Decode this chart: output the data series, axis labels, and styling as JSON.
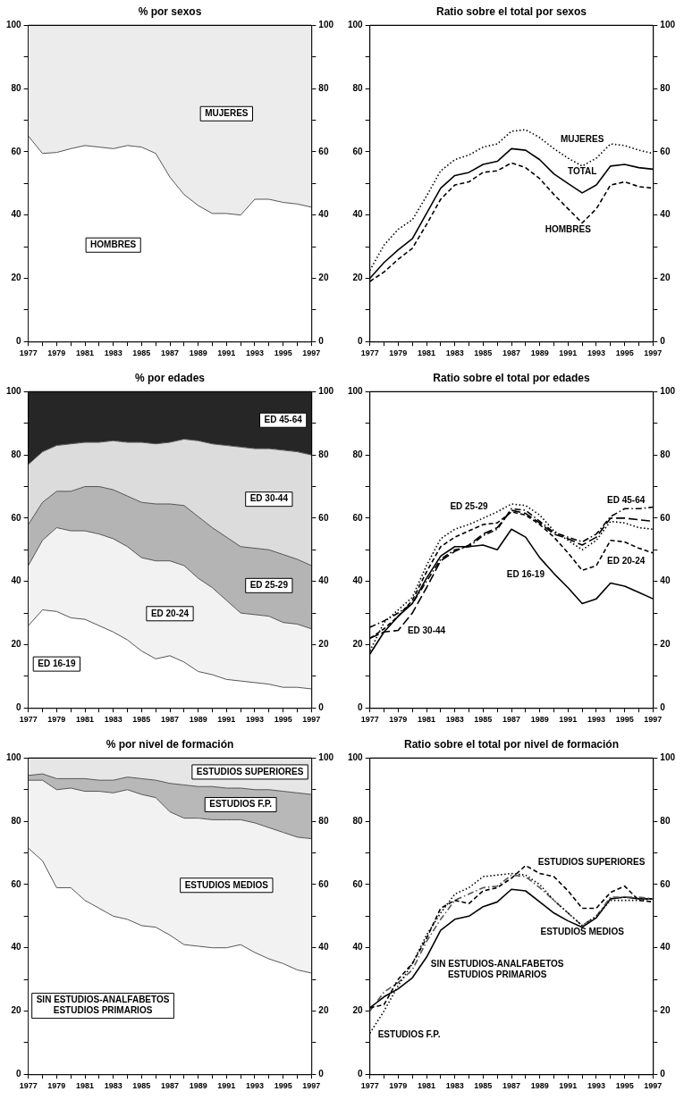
{
  "chart_data": [
    {
      "type": "area",
      "stacked": true,
      "title": "% por sexos",
      "x": [
        1977,
        1978,
        1979,
        1980,
        1981,
        1982,
        1983,
        1984,
        1985,
        1986,
        1987,
        1988,
        1989,
        1990,
        1991,
        1992,
        1993,
        1994,
        1995,
        1996,
        1997
      ],
      "xlim": [
        1977,
        1997
      ],
      "xticks": [
        1977,
        {
          "value": 1978,
          "label": null
        },
        1979,
        {
          "value": 1980,
          "label": null
        },
        1981,
        {
          "value": 1982,
          "label": null
        },
        1983,
        {
          "value": 1984,
          "label": null
        },
        1985,
        {
          "value": 1986,
          "label": null
        },
        1987,
        {
          "value": 1988,
          "label": null
        },
        1989,
        {
          "value": 1990,
          "label": null
        },
        1991,
        {
          "value": 1992,
          "label": null
        },
        1993,
        {
          "value": 1994,
          "label": null
        },
        1995,
        {
          "value": 1996,
          "label": null
        },
        1997
      ],
      "ylim": [
        0,
        100
      ],
      "yticks": [
        0,
        {
          "value": 10,
          "label": null
        },
        20,
        {
          "value": 30,
          "label": null
        },
        40,
        {
          "value": 50,
          "label": null
        },
        60,
        {
          "value": 70,
          "label": null
        },
        80,
        {
          "value": 90,
          "label": null
        },
        100
      ],
      "y2lim": [
        0,
        100
      ],
      "y2ticks": [
        0,
        {
          "value": 10,
          "label": null
        },
        20,
        {
          "value": 30,
          "label": null
        },
        40,
        {
          "value": 50,
          "label": null
        },
        60,
        {
          "value": 70,
          "label": null
        },
        80,
        {
          "value": 90,
          "label": null
        },
        100
      ],
      "series": [
        {
          "name": "HOMBRES",
          "color": "#ffffff",
          "values": [
            65,
            59.5,
            59.8,
            61,
            62,
            61.5,
            61,
            62,
            61.5,
            59.5,
            52,
            46.5,
            43,
            40.5,
            40.5,
            40,
            45,
            45,
            44,
            43.5,
            42.5
          ]
        },
        {
          "name": "MUJERES",
          "color": "#ececec",
          "values": [
            35,
            40.5,
            40.2,
            39,
            38,
            38.5,
            39,
            38,
            38.5,
            40.5,
            48,
            53.5,
            57,
            59.5,
            59.5,
            60,
            55,
            55,
            56,
            56.5,
            57.5
          ]
        }
      ]
    },
    {
      "type": "line",
      "title": "Ratio sobre el total por sexos",
      "x": [
        1977,
        1978,
        1979,
        1980,
        1981,
        1982,
        1983,
        1984,
        1985,
        1986,
        1987,
        1988,
        1989,
        1990,
        1991,
        1992,
        1993,
        1994,
        1995,
        1996,
        1997
      ],
      "xlim": [
        1977,
        1997
      ],
      "xticks": [
        1977,
        {
          "value": 1978,
          "label": null
        },
        1979,
        {
          "value": 1980,
          "label": null
        },
        1981,
        {
          "value": 1982,
          "label": null
        },
        1983,
        {
          "value": 1984,
          "label": null
        },
        1985,
        {
          "value": 1986,
          "label": null
        },
        1987,
        {
          "value": 1988,
          "label": null
        },
        1989,
        {
          "value": 1990,
          "label": null
        },
        1991,
        {
          "value": 1992,
          "label": null
        },
        1993,
        {
          "value": 1994,
          "label": null
        },
        1995,
        {
          "value": 1996,
          "label": null
        },
        1997
      ],
      "ylim": [
        0,
        100
      ],
      "yticks": [
        0,
        {
          "value": 10,
          "label": null
        },
        20,
        {
          "value": 30,
          "label": null
        },
        40,
        {
          "value": 50,
          "label": null
        },
        60,
        {
          "value": 70,
          "label": null
        },
        80,
        {
          "value": 90,
          "label": null
        },
        100
      ],
      "y2lim": [
        0,
        100
      ],
      "y2ticks": [
        0,
        {
          "value": 10,
          "label": null
        },
        20,
        {
          "value": 30,
          "label": null
        },
        40,
        {
          "value": 50,
          "label": null
        },
        60,
        {
          "value": 70,
          "label": null
        },
        80,
        {
          "value": 90,
          "label": null
        },
        100
      ],
      "series": [
        {
          "name": "MUJERES",
          "color": "#000000",
          "line_style": "dotted",
          "values": [
            22.5,
            30.5,
            35.5,
            38.5,
            46,
            54,
            57.5,
            59,
            61.5,
            62.5,
            66.5,
            67,
            64.5,
            61,
            58,
            55.5,
            58,
            62.5,
            62,
            60.5,
            59.5
          ]
        },
        {
          "name": "TOTAL",
          "color": "#000000",
          "line_style": "solid",
          "values": [
            20,
            25,
            29,
            32.5,
            40.5,
            48.5,
            52.5,
            53.5,
            56,
            57,
            61,
            60.5,
            57.5,
            53,
            50,
            47,
            49.5,
            55.5,
            56,
            55,
            54.5
          ]
        },
        {
          "name": "HOMBRES",
          "color": "#000000",
          "line_style": "dashed",
          "values": [
            19,
            22,
            26,
            29.5,
            37,
            45,
            49.5,
            50.5,
            53.5,
            54,
            56.5,
            55,
            51.5,
            46.5,
            42,
            37.5,
            42,
            49.5,
            50.5,
            49,
            48.5
          ]
        }
      ]
    },
    {
      "type": "area",
      "stacked": true,
      "title": "% por edades",
      "x": [
        1977,
        1978,
        1979,
        1980,
        1981,
        1982,
        1983,
        1984,
        1985,
        1986,
        1987,
        1988,
        1989,
        1990,
        1991,
        1992,
        1993,
        1994,
        1995,
        1996,
        1997
      ],
      "xlim": [
        1977,
        1997
      ],
      "xticks": [
        1977,
        {
          "value": 1978,
          "label": null
        },
        1979,
        {
          "value": 1980,
          "label": null
        },
        1981,
        {
          "value": 1982,
          "label": null
        },
        1983,
        {
          "value": 1984,
          "label": null
        },
        1985,
        {
          "value": 1986,
          "label": null
        },
        1987,
        {
          "value": 1988,
          "label": null
        },
        1989,
        {
          "value": 1990,
          "label": null
        },
        1991,
        {
          "value": 1992,
          "label": null
        },
        1993,
        {
          "value": 1994,
          "label": null
        },
        1995,
        {
          "value": 1996,
          "label": null
        },
        1997
      ],
      "ylim": [
        0,
        100
      ],
      "yticks": [
        0,
        {
          "value": 10,
          "label": null
        },
        20,
        {
          "value": 30,
          "label": null
        },
        40,
        {
          "value": 50,
          "label": null
        },
        60,
        {
          "value": 70,
          "label": null
        },
        80,
        {
          "value": 90,
          "label": null
        },
        100
      ],
      "y2lim": [
        0,
        100
      ],
      "y2ticks": [
        0,
        {
          "value": 10,
          "label": null
        },
        20,
        {
          "value": 30,
          "label": null
        },
        40,
        {
          "value": 50,
          "label": null
        },
        60,
        {
          "value": 70,
          "label": null
        },
        80,
        {
          "value": 90,
          "label": null
        },
        100
      ],
      "series": [
        {
          "name": "ED 16-19",
          "color": "#ffffff",
          "values": [
            26,
            31,
            30.5,
            28.5,
            28,
            26,
            24,
            21.5,
            18,
            15.5,
            16.5,
            14.5,
            11.5,
            10.5,
            9,
            8.5,
            8,
            7.5,
            6.5,
            6.5,
            6
          ]
        },
        {
          "name": "ED 20-24",
          "color": "#f2f2f2",
          "values": [
            19,
            22,
            26.5,
            27.5,
            28,
            29,
            29.5,
            29.5,
            29.5,
            31,
            30,
            30.5,
            29.5,
            27.5,
            25,
            21.5,
            21.5,
            21.5,
            20.5,
            20,
            19
          ]
        },
        {
          "name": "ED 25-29",
          "color": "#b4b4b4",
          "values": [
            13,
            12,
            11.5,
            12.5,
            14,
            15,
            15.5,
            16,
            17.5,
            18,
            18,
            19,
            19.5,
            19,
            20,
            21,
            21,
            21,
            21.5,
            20.5,
            20
          ]
        },
        {
          "name": "ED 30-44",
          "color": "#dcdcdc",
          "values": [
            19,
            16,
            14.5,
            15,
            14,
            14,
            15.5,
            17,
            19,
            19,
            19.5,
            21,
            24,
            26.5,
            29,
            31.5,
            31.5,
            32,
            33,
            34,
            35
          ]
        },
        {
          "name": "ED 45-64",
          "color": "#262626",
          "values": [
            23,
            19,
            17,
            16.5,
            16,
            16,
            15.5,
            16,
            16,
            16.5,
            16,
            15,
            15.5,
            16.5,
            17,
            17.5,
            18,
            18,
            18.5,
            19,
            20
          ]
        }
      ]
    },
    {
      "type": "line",
      "title": "Ratio sobre el total por edades",
      "x": [
        1977,
        1978,
        1979,
        1980,
        1981,
        1982,
        1983,
        1984,
        1985,
        1986,
        1987,
        1988,
        1989,
        1990,
        1991,
        1992,
        1993,
        1994,
        1995,
        1996,
        1997
      ],
      "xlim": [
        1977,
        1997
      ],
      "xticks": [
        1977,
        {
          "value": 1978,
          "label": null
        },
        1979,
        {
          "value": 1980,
          "label": null
        },
        1981,
        {
          "value": 1982,
          "label": null
        },
        1983,
        {
          "value": 1984,
          "label": null
        },
        1985,
        {
          "value": 1986,
          "label": null
        },
        1987,
        {
          "value": 1988,
          "label": null
        },
        1989,
        {
          "value": 1990,
          "label": null
        },
        1991,
        {
          "value": 1992,
          "label": null
        },
        1993,
        {
          "value": 1994,
          "label": null
        },
        1995,
        {
          "value": 1996,
          "label": null
        },
        1997
      ],
      "ylim": [
        0,
        100
      ],
      "yticks": [
        0,
        {
          "value": 10,
          "label": null
        },
        20,
        {
          "value": 30,
          "label": null
        },
        40,
        {
          "value": 50,
          "label": null
        },
        60,
        {
          "value": 70,
          "label": null
        },
        80,
        {
          "value": 90,
          "label": null
        },
        100
      ],
      "y2lim": [
        0,
        100
      ],
      "y2ticks": [
        0,
        {
          "value": 10,
          "label": null
        },
        20,
        {
          "value": 30,
          "label": null
        },
        40,
        {
          "value": 50,
          "label": null
        },
        60,
        {
          "value": 70,
          "label": null
        },
        80,
        {
          "value": 90,
          "label": null
        },
        100
      ],
      "series": [
        {
          "name": "ED 45-64",
          "color": "#000000",
          "line_style": "dashdot",
          "values": [
            25.5,
            27.5,
            30,
            33,
            40,
            47,
            50,
            51,
            54.5,
            56.5,
            63,
            62.5,
            59,
            55.5,
            54,
            52.5,
            55,
            60.5,
            63,
            63,
            63.5
          ]
        },
        {
          "name": "ED 25-29",
          "color": "#000000",
          "line_style": "dotted",
          "values": [
            18,
            27,
            31,
            35,
            45,
            53.5,
            56.5,
            58,
            60,
            62,
            64.5,
            64,
            61,
            56,
            53,
            50,
            53,
            59,
            58.5,
            57,
            56.5
          ]
        },
        {
          "name": "ED 20-24",
          "color": "#000000",
          "line_style": "dashed",
          "values": [
            22,
            25,
            29,
            34,
            43,
            51,
            54,
            56,
            58,
            58.5,
            62,
            61,
            58,
            54,
            49,
            43.5,
            45,
            53,
            52.5,
            50.5,
            49
          ]
        },
        {
          "name": "ED 16-19",
          "color": "#000000",
          "line_style": "solid",
          "values": [
            17,
            24,
            29,
            33,
            41,
            48,
            51,
            51,
            51.5,
            50,
            56.5,
            54,
            47.5,
            42.5,
            38,
            33,
            34.5,
            39.5,
            38.5,
            36.5,
            34.5
          ]
        },
        {
          "name": "ED 30-44",
          "color": "#000000",
          "line_style": "longdash",
          "values": [
            22,
            24,
            24.5,
            30,
            38,
            46.5,
            49.5,
            51.5,
            55,
            57,
            62.5,
            61.5,
            58.5,
            55,
            53.5,
            51.5,
            54,
            60,
            60,
            59.5,
            59
          ]
        }
      ]
    },
    {
      "type": "area",
      "stacked": true,
      "title": "% por nivel de formación",
      "x": [
        1977,
        1978,
        1979,
        1980,
        1981,
        1982,
        1983,
        1984,
        1985,
        1986,
        1987,
        1988,
        1989,
        1990,
        1991,
        1992,
        1993,
        1994,
        1995,
        1996,
        1997
      ],
      "xlim": [
        1977,
        1997
      ],
      "xticks": [
        1977,
        {
          "value": 1978,
          "label": null
        },
        1979,
        {
          "value": 1980,
          "label": null
        },
        1981,
        {
          "value": 1982,
          "label": null
        },
        1983,
        {
          "value": 1984,
          "label": null
        },
        1985,
        {
          "value": 1986,
          "label": null
        },
        1987,
        {
          "value": 1988,
          "label": null
        },
        1989,
        {
          "value": 1990,
          "label": null
        },
        1991,
        {
          "value": 1992,
          "label": null
        },
        1993,
        {
          "value": 1994,
          "label": null
        },
        1995,
        {
          "value": 1996,
          "label": null
        },
        1997
      ],
      "ylim": [
        0,
        100
      ],
      "yticks": [
        0,
        {
          "value": 10,
          "label": null
        },
        20,
        {
          "value": 30,
          "label": null
        },
        40,
        {
          "value": 50,
          "label": null
        },
        60,
        {
          "value": 70,
          "label": null
        },
        80,
        {
          "value": 90,
          "label": null
        },
        100
      ],
      "y2lim": [
        0,
        100
      ],
      "y2ticks": [
        0,
        {
          "value": 10,
          "label": null
        },
        20,
        {
          "value": 30,
          "label": null
        },
        40,
        {
          "value": 50,
          "label": null
        },
        60,
        {
          "value": 70,
          "label": null
        },
        80,
        {
          "value": 90,
          "label": null
        },
        100
      ],
      "series": [
        {
          "name": "SIN ESTUDIOS-ANALFABETOS\nESTUDIOS PRIMARIOS",
          "color": "#ffffff",
          "values": [
            71.5,
            67.5,
            59,
            59,
            55,
            52.5,
            50,
            49,
            47,
            46.5,
            44,
            41,
            40.5,
            40,
            40,
            41,
            38.5,
            36.5,
            35,
            33,
            32
          ]
        },
        {
          "name": "ESTUDIOS MEDIOS",
          "color": "#f2f2f2",
          "values": [
            21.5,
            25.5,
            31,
            31.5,
            34.5,
            37,
            39,
            41,
            41.5,
            41,
            39,
            40,
            40.5,
            40.5,
            40.5,
            39.5,
            41,
            41.5,
            41.5,
            42,
            42.5
          ]
        },
        {
          "name": "ESTUDIOS F.P.",
          "color": "#b8b8b8",
          "values": [
            1.5,
            2,
            3.5,
            3,
            4,
            3.5,
            4,
            4,
            5,
            5.5,
            9,
            10.5,
            10,
            10.5,
            10,
            10,
            10.5,
            12,
            13,
            14,
            14
          ]
        },
        {
          "name": "ESTUDIOS SUPERIORES",
          "color": "#e6e6e6",
          "values": [
            5.5,
            5,
            6.5,
            6.5,
            6.5,
            7,
            7,
            6,
            6.5,
            7,
            8,
            8.5,
            9,
            9,
            9.5,
            9.5,
            10,
            10,
            10.5,
            11,
            11.5
          ]
        }
      ]
    },
    {
      "type": "line",
      "title": "Ratio sobre el total por nivel de formación",
      "x": [
        1977,
        1978,
        1979,
        1980,
        1981,
        1982,
        1983,
        1984,
        1985,
        1986,
        1987,
        1988,
        1989,
        1990,
        1991,
        1992,
        1993,
        1994,
        1995,
        1996,
        1997
      ],
      "xlim": [
        1977,
        1997
      ],
      "xticks": [
        1977,
        {
          "value": 1978,
          "label": null
        },
        1979,
        {
          "value": 1980,
          "label": null
        },
        1981,
        {
          "value": 1982,
          "label": null
        },
        1983,
        {
          "value": 1984,
          "label": null
        },
        1985,
        {
          "value": 1986,
          "label": null
        },
        1987,
        {
          "value": 1988,
          "label": null
        },
        1989,
        {
          "value": 1990,
          "label": null
        },
        1991,
        {
          "value": 1992,
          "label": null
        },
        1993,
        {
          "value": 1994,
          "label": null
        },
        1995,
        {
          "value": 1996,
          "label": null
        },
        1997
      ],
      "ylim": [
        0,
        100
      ],
      "yticks": [
        0,
        {
          "value": 10,
          "label": null
        },
        20,
        {
          "value": 30,
          "label": null
        },
        40,
        {
          "value": 50,
          "label": null
        },
        60,
        {
          "value": 70,
          "label": null
        },
        80,
        {
          "value": 90,
          "label": null
        },
        100
      ],
      "y2lim": [
        0,
        100
      ],
      "y2ticks": [
        0,
        {
          "value": 10,
          "label": null
        },
        20,
        {
          "value": 30,
          "label": null
        },
        40,
        {
          "value": 50,
          "label": null
        },
        60,
        {
          "value": 70,
          "label": null
        },
        80,
        {
          "value": 90,
          "label": null
        },
        100
      ],
      "series": [
        {
          "name": "ESTUDIOS SUPERIORES",
          "color": "#000000",
          "line_style": "dashed",
          "values": [
            21,
            22,
            30,
            35,
            43,
            52.5,
            55,
            54,
            58,
            59,
            62,
            66,
            63.5,
            62.5,
            58,
            52.5,
            52.5,
            57.5,
            59.5,
            55,
            54.5
          ]
        },
        {
          "name": "ESTUDIOS F.P.",
          "color": "#000000",
          "line_style": "dotted",
          "values": [
            13,
            20,
            28,
            35,
            44,
            51,
            57,
            59,
            62.5,
            63,
            63.5,
            63,
            60,
            55,
            51,
            47,
            50,
            55,
            55,
            55,
            55.5
          ]
        },
        {
          "name": "ESTUDIOS MEDIOS",
          "color": "#555555",
          "line_style": "dashdot",
          "values": [
            20,
            26,
            29,
            33,
            42,
            49,
            55,
            57,
            59,
            59.5,
            63,
            62.5,
            59,
            55,
            51,
            47,
            50,
            56,
            56,
            56,
            55.5
          ]
        },
        {
          "name": "SIN ESTUDIOS-ANALFABETOS\nESTUDIOS PRIMARIOS",
          "color": "#000000",
          "line_style": "solid",
          "values": [
            21,
            24.5,
            27,
            30.5,
            37,
            45.5,
            49,
            50,
            53,
            54.5,
            58.5,
            58,
            54.5,
            51,
            48.5,
            46.5,
            49.5,
            55.5,
            56,
            55.5,
            55.5
          ]
        }
      ]
    }
  ]
}
